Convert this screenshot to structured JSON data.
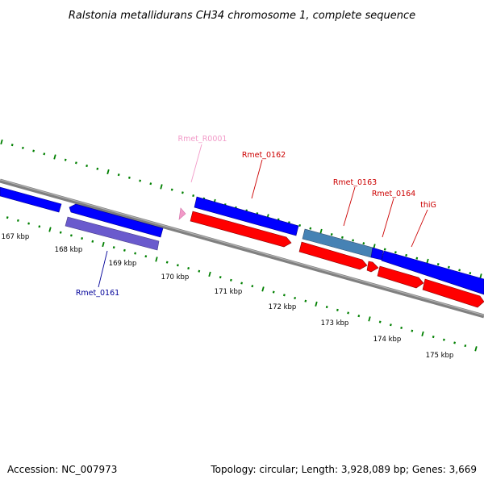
{
  "title": "Ralstonia metallidurans CH34 chromosome 1, complete sequence",
  "accession": "Accession: NC_007973",
  "summary": "Topology: circular; Length: 3,928,089 bp; Genes: 3,669",
  "tick_labels": [
    "167 kbp",
    "168 kbp",
    "169 kbp",
    "170 kbp",
    "171 kbp",
    "172 kbp",
    "173 kbp",
    "174 kbp",
    "175 kbp"
  ],
  "gene_labels": [
    {
      "id": "rmet_r0001",
      "text": "Rmet_R0001",
      "color": "#f29ac8"
    },
    {
      "id": "rmet_0162",
      "text": "Rmet_0162",
      "color": "#cc0000"
    },
    {
      "id": "rmet_0163",
      "text": "Rmet_0163",
      "color": "#cc0000"
    },
    {
      "id": "rmet_0164",
      "text": "Rmet_0164",
      "color": "#cc0000"
    },
    {
      "id": "thig",
      "text": "thiG",
      "color": "#cc0000"
    },
    {
      "id": "rmet_0161",
      "text": "Rmet_0161",
      "color": "#000099"
    }
  ],
  "colors": {
    "backbone": "#808080",
    "forward_gene": "#0000ff",
    "reverse_gene": "#ff0000",
    "rrna": "#f29ac8",
    "steel_gene": "#4682b4",
    "purple_gene": "#6a5acd",
    "tick": "#008000"
  }
}
